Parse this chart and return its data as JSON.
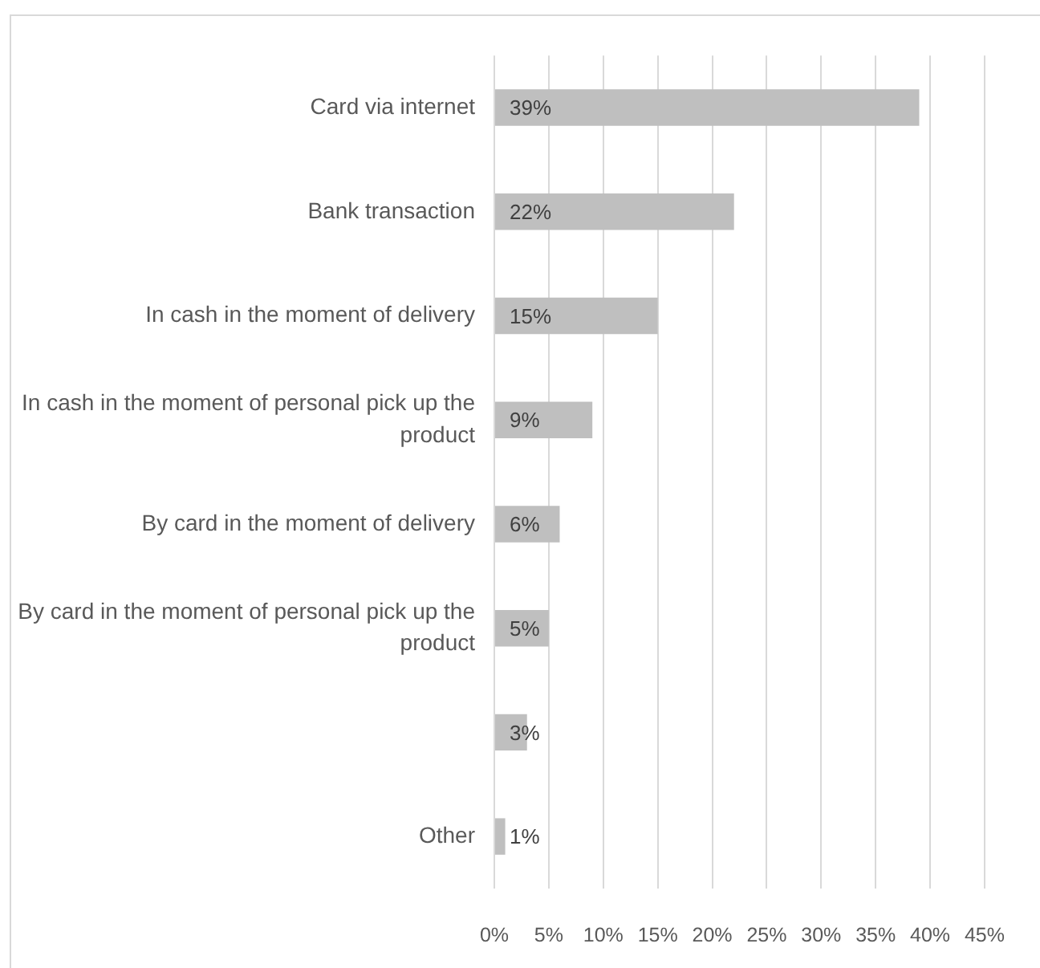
{
  "chart_data": {
    "type": "bar",
    "orientation": "horizontal",
    "categories": [
      "Card via internet",
      "Bank transaction",
      "In cash in the moment of delivery",
      "In cash in the moment of personal pick up the product",
      "By card in the moment of delivery",
      "By card in the moment of personal pick up the product",
      null,
      "Other"
    ],
    "values": [
      39,
      22,
      15,
      9,
      6,
      5,
      3,
      1
    ],
    "value_labels": [
      "39%",
      "22%",
      "15%",
      "9%",
      "6%",
      "5%",
      "3%",
      "1%"
    ],
    "color": "#bfbfbf",
    "xlim": [
      0,
      45
    ],
    "xticks": [
      {
        "value": 0,
        "label": "0%"
      },
      {
        "value": 5,
        "label": "5%"
      },
      {
        "value": 10,
        "label": "10%"
      },
      {
        "value": 15,
        "label": "15%"
      },
      {
        "value": 20,
        "label": "20%"
      },
      {
        "value": 25,
        "label": "25%"
      },
      {
        "value": 30,
        "label": "30%"
      },
      {
        "value": 35,
        "label": "35%"
      },
      {
        "value": 40,
        "label": "40%"
      },
      {
        "value": 45,
        "label": "45%"
      }
    ],
    "grid": "x"
  }
}
